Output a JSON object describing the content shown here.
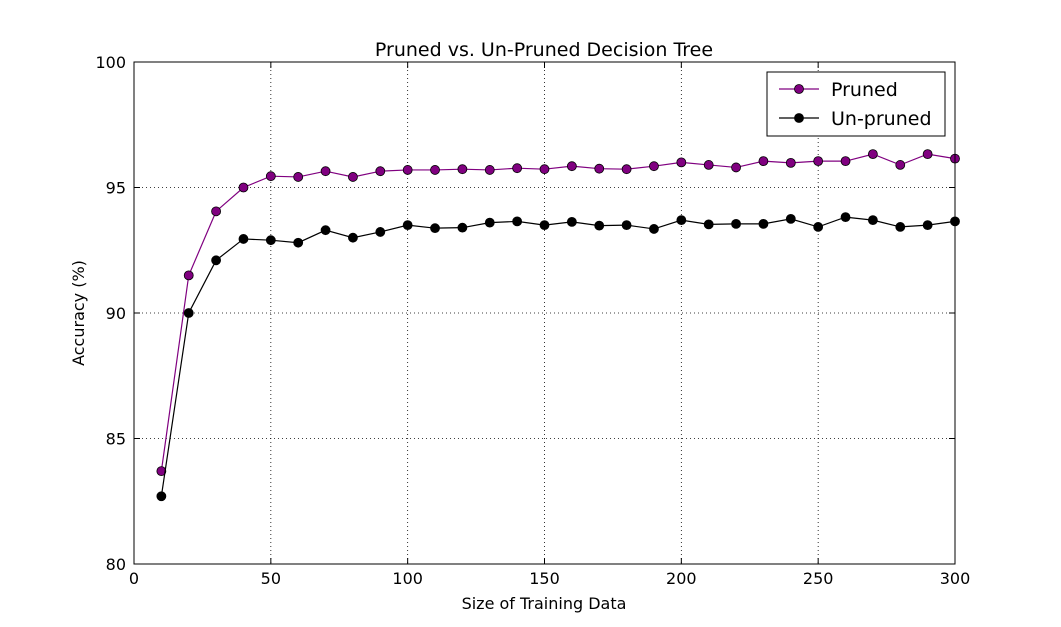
{
  "chart_data": {
    "type": "line",
    "title": "Pruned vs. Un-Pruned Decision Tree",
    "xlabel": "Size of Training Data",
    "ylabel": "Accuracy (%)",
    "xlim": [
      0,
      300
    ],
    "ylim": [
      80,
      100
    ],
    "xticks": [
      0,
      50,
      100,
      150,
      200,
      250,
      300
    ],
    "yticks": [
      80,
      85,
      90,
      95,
      100
    ],
    "grid": true,
    "legend_position": "top-right",
    "x": [
      10,
      20,
      30,
      40,
      50,
      60,
      70,
      80,
      90,
      100,
      110,
      120,
      130,
      140,
      150,
      160,
      170,
      180,
      190,
      200,
      210,
      220,
      230,
      240,
      250,
      260,
      270,
      280,
      290,
      300
    ],
    "series": [
      {
        "name": "Pruned",
        "color": "#800080",
        "values": [
          83.7,
          91.5,
          94.05,
          95.0,
          95.45,
          95.42,
          95.65,
          95.42,
          95.65,
          95.7,
          95.7,
          95.73,
          95.7,
          95.77,
          95.73,
          95.85,
          95.75,
          95.73,
          95.85,
          96.0,
          95.9,
          95.8,
          96.05,
          95.98,
          96.05,
          96.05,
          96.33,
          95.9,
          96.33,
          96.15
        ]
      },
      {
        "name": "Un-pruned",
        "color": "#000000",
        "values": [
          82.7,
          90.0,
          92.1,
          92.95,
          92.9,
          92.8,
          93.3,
          93.0,
          93.23,
          93.5,
          93.38,
          93.4,
          93.6,
          93.65,
          93.5,
          93.63,
          93.48,
          93.5,
          93.35,
          93.7,
          93.53,
          93.55,
          93.55,
          93.75,
          93.43,
          93.82,
          93.7,
          93.43,
          93.5,
          93.65
        ]
      }
    ]
  }
}
